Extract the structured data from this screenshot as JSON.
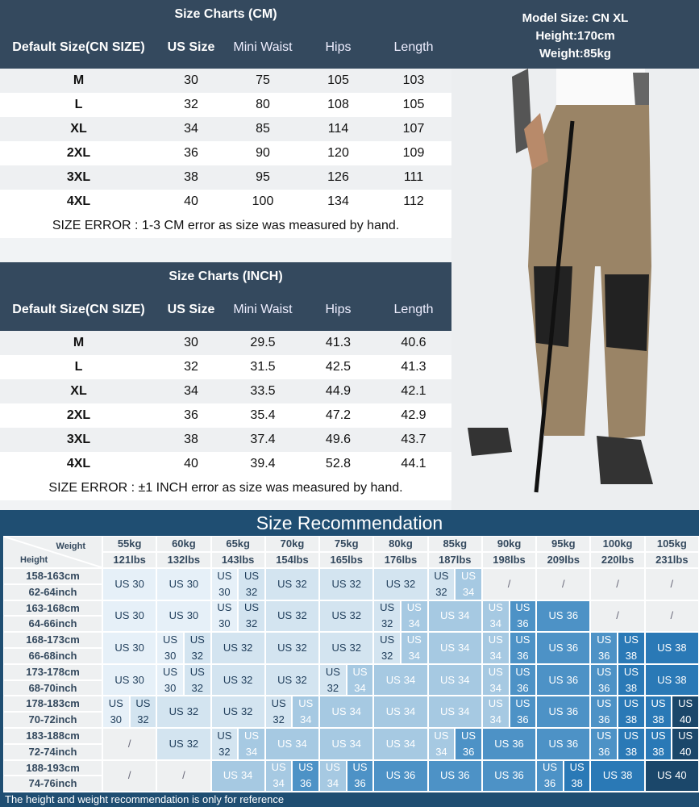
{
  "model": {
    "line1": "Model Size: CN XL",
    "line2": "Height:170cm",
    "line3": "Weight:85kg"
  },
  "cm_chart": {
    "title": "Size Charts (CM)",
    "headers": [
      "Default Size(CN SIZE)",
      "US Size",
      "Mini Waist",
      "Hips",
      "Length"
    ],
    "rows": [
      [
        "M",
        "30",
        "75",
        "105",
        "103"
      ],
      [
        "L",
        "32",
        "80",
        "108",
        "105"
      ],
      [
        "XL",
        "34",
        "85",
        "114",
        "107"
      ],
      [
        "2XL",
        "36",
        "90",
        "120",
        "109"
      ],
      [
        "3XL",
        "38",
        "95",
        "126",
        "111"
      ],
      [
        "4XL",
        "40",
        "100",
        "134",
        "112"
      ]
    ],
    "note": "SIZE ERROR : 1-3 CM error as size was measured by hand."
  },
  "inch_chart": {
    "title": "Size Charts (INCH)",
    "headers": [
      "Default Size(CN SIZE)",
      "US Size",
      "Mini Waist",
      "Hips",
      "Length"
    ],
    "rows": [
      [
        "M",
        "30",
        "29.5",
        "41.3",
        "40.6"
      ],
      [
        "L",
        "32",
        "31.5",
        "42.5",
        "41.3"
      ],
      [
        "XL",
        "34",
        "33.5",
        "44.9",
        "42.1"
      ],
      [
        "2XL",
        "36",
        "35.4",
        "47.2",
        "42.9"
      ],
      [
        "3XL",
        "38",
        "37.4",
        "49.6",
        "43.7"
      ],
      [
        "4XL",
        "40",
        "39.4",
        "52.8",
        "44.1"
      ]
    ],
    "note": "SIZE ERROR : ±1 INCH error as size was measured by hand."
  },
  "recommendation": {
    "title": "Size Recommendation",
    "weight_label": "Weight",
    "height_label": "Height",
    "weights": [
      [
        "55kg",
        "121lbs"
      ],
      [
        "60kg",
        "132lbs"
      ],
      [
        "65kg",
        "143lbs"
      ],
      [
        "70kg",
        "154lbs"
      ],
      [
        "75kg",
        "165lbs"
      ],
      [
        "80kg",
        "176lbs"
      ],
      [
        "85kg",
        "187lbs"
      ],
      [
        "90kg",
        "198lbs"
      ],
      [
        "95kg",
        "209lbs"
      ],
      [
        "100kg",
        "220lbs"
      ],
      [
        "105kg",
        "231lbs"
      ]
    ],
    "heights": [
      [
        "158-163cm",
        "62-64inch"
      ],
      [
        "163-168cm",
        "64-66inch"
      ],
      [
        "168-173cm",
        "66-68inch"
      ],
      [
        "173-178cm",
        "68-70inch"
      ],
      [
        "178-183cm",
        "70-72inch"
      ],
      [
        "183-188cm",
        "72-74inch"
      ],
      [
        "188-193cm",
        "74-76inch"
      ]
    ],
    "grid": [
      [
        "30",
        "30",
        [
          "30",
          "32"
        ],
        "32",
        "32",
        "32",
        [
          "32",
          "34"
        ],
        "/",
        "/",
        "/",
        "/"
      ],
      [
        "30",
        "30",
        [
          "30",
          "32"
        ],
        "32",
        "32",
        [
          "32",
          "34"
        ],
        "34",
        [
          "34",
          "36"
        ],
        "36",
        "/",
        "/"
      ],
      [
        "30",
        [
          "30",
          "32"
        ],
        "32",
        "32",
        "32",
        [
          "32",
          "34"
        ],
        "34",
        [
          "34",
          "36"
        ],
        "36",
        [
          "36",
          "38"
        ],
        "38"
      ],
      [
        "30",
        [
          "30",
          "32"
        ],
        "32",
        "32",
        [
          "32",
          "34"
        ],
        "34",
        "34",
        [
          "34",
          "36"
        ],
        "36",
        [
          "36",
          "38"
        ],
        "38"
      ],
      [
        [
          "30",
          "32"
        ],
        "32",
        "32",
        [
          "32",
          "34"
        ],
        "34",
        "34",
        "34",
        [
          "34",
          "36"
        ],
        "36",
        [
          "36",
          "38"
        ],
        [
          "38",
          "40"
        ]
      ],
      [
        "/",
        "32",
        [
          "32",
          "34"
        ],
        "34",
        "34",
        "34",
        [
          "34",
          "36"
        ],
        "36",
        "36",
        [
          "36",
          "38"
        ],
        [
          "38",
          "40"
        ]
      ],
      [
        "/",
        "/",
        "34",
        [
          "34",
          "36"
        ],
        [
          "34",
          "36"
        ],
        "36",
        "36",
        "36",
        [
          "36",
          "38"
        ],
        "38",
        "40"
      ]
    ],
    "size_prefix": "US",
    "colors": {
      "30": "#e6f0f8",
      "32": "#d3e4f0",
      "34": "#a6c9e2",
      "36": "#4d92c6",
      "38": "#2a79b6",
      "40": "#1b476a",
      "/": "#eef0f1"
    },
    "footer": "The height and weight recommendation is only for reference"
  }
}
